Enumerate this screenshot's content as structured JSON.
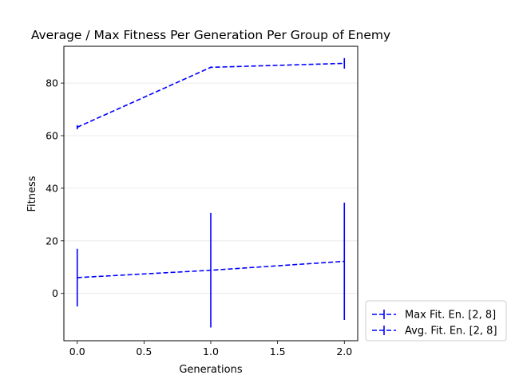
{
  "chart_data": {
    "type": "line",
    "title": "Average / Max Fitness Per Generation Per Group of Enemy",
    "xlabel": "Generations",
    "ylabel": "Fitness",
    "x": [
      0,
      1,
      2
    ],
    "xlim": [
      -0.1,
      2.1
    ],
    "ylim": [
      -18,
      94
    ],
    "xticks": [
      0.0,
      0.5,
      1.0,
      1.5,
      2.0
    ],
    "xtick_labels": [
      "0.0",
      "0.5",
      "1.0",
      "1.5",
      "2.0"
    ],
    "yticks": [
      0,
      20,
      40,
      60,
      80
    ],
    "ytick_labels": [
      "0",
      "20",
      "40",
      "60",
      "80"
    ],
    "grid": "horizontal",
    "legend_position": "outside-bottom-right",
    "series": [
      {
        "name": "Max Fit. En. [2, 8]",
        "color": "#0000ff",
        "style": "dashed",
        "values": [
          63.2,
          86.0,
          87.5
        ],
        "err": [
          0.8,
          0.3,
          2.0
        ]
      },
      {
        "name": "Avg. Fit. En. [2, 8]",
        "color": "#0000ff",
        "style": "dashed",
        "values": [
          6.0,
          8.8,
          12.2
        ],
        "err": [
          11.0,
          21.8,
          22.3
        ]
      }
    ]
  }
}
